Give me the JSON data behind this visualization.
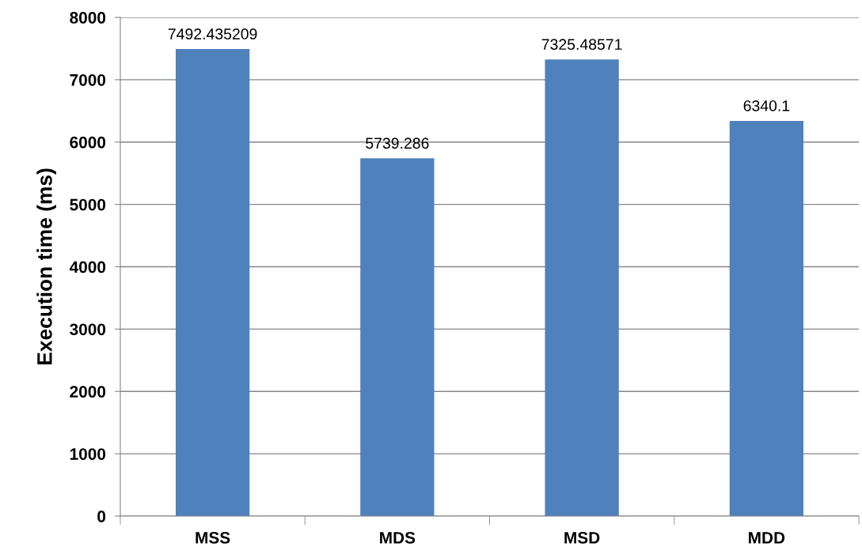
{
  "chart_data": {
    "type": "bar",
    "ylabel": "Execution time (ms)",
    "categories": [
      "MSS",
      "MDS",
      "MSD",
      "MDD"
    ],
    "values": [
      7492.435209,
      5739.286,
      7325.48571,
      6340.1
    ],
    "color": "#4f81bd",
    "ylim": [
      0,
      8000
    ],
    "yticks": [
      0,
      1000,
      2000,
      3000,
      4000,
      5000,
      6000,
      7000,
      8000
    ],
    "grid": "y",
    "data_labels": true
  }
}
